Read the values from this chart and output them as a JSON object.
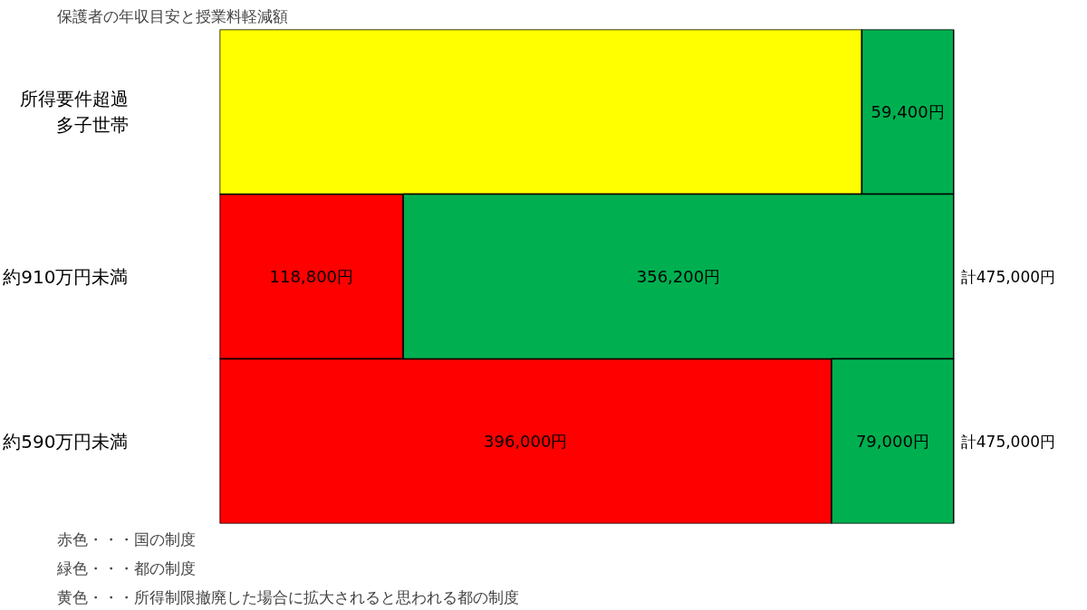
{
  "chart_data": {
    "type": "bar",
    "orientation": "horizontal",
    "stacked": true,
    "tick_labels": "y",
    "title": "保護者の年収目安と授業料軽減額",
    "categories": [
      "所得要件超過多子世帯",
      "約910万円未満",
      "約590万円未満"
    ],
    "series": [
      {
        "color": "#ff0000",
        "values": [
          null,
          118800,
          396000
        ],
        "value_labels": [
          null,
          "118,800円",
          "396,000円"
        ]
      },
      {
        "color": "#ffff00",
        "values": [
          415600,
          null,
          null
        ],
        "value_labels": [
          null,
          null,
          null
        ]
      },
      {
        "color": "#00b050",
        "values": [
          59400,
          356200,
          79000
        ],
        "value_labels": [
          "59,400円",
          "356,200円",
          "79,000円"
        ]
      }
    ],
    "totals": [
      null,
      "計475,000円",
      "計475,000円"
    ],
    "annotations": [
      "赤色・・・国の制度",
      "緑色・・・都の制度",
      "黄色・・・所得制限撤廃した場合に拡大されると思われる都の制度"
    ]
  }
}
